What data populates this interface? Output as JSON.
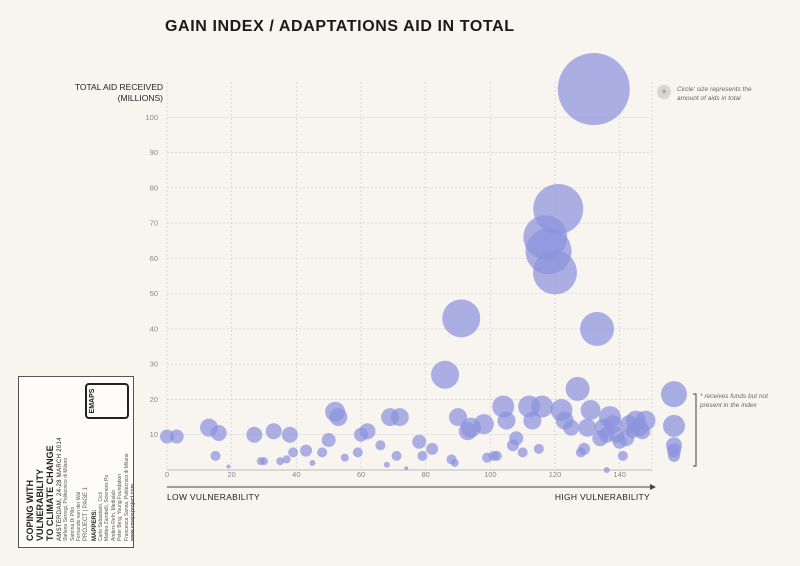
{
  "title": "GAIN INDEX / ADAPTATIONS AID IN TOTAL",
  "legend_note": [
    "Circle' size represents the",
    "amount of aids in total"
  ],
  "side_note": [
    "* receives funds but not",
    "present in the index"
  ],
  "colors": {
    "bubble": "#8c93dc",
    "grid": "#cccccc",
    "axis": "#444444"
  },
  "card": {
    "title_lines": [
      "Coping with",
      "vulnerability",
      "to climate change"
    ],
    "subtitle": "AMSTERDAM, 24-28 MARCH 2014",
    "team": [
      "Stefano Serregi, Politecnico di Milano",
      "Sabrina Di Pillo",
      "Fernando van der Wal"
    ],
    "website": "www.emapsproject.com",
    "mappers_heading": "MAPPERS:",
    "mappers": [
      "Carlo Sebastiani, Cicli",
      "Matteo Zambelli, Sciences Po",
      "Anders Refn, Medialab",
      "Peter Berg, Young Foundation",
      "Francesca Sanna, Politecnico di Milano"
    ],
    "page": "PROJECT | PAGE 1",
    "logo": "EMAPS"
  },
  "chart_data": {
    "type": "scatter",
    "title": "GAIN INDEX / ADAPTATIONS AID IN TOTAL",
    "ylabel": [
      "TOTAL AID RECEIVED",
      "(MILLIONS)"
    ],
    "xlabel_low": "LOW VULNERABILITY",
    "xlabel_high": "HIGH VULNERABILITY",
    "xlim": [
      0,
      150
    ],
    "ylim": [
      0,
      110
    ],
    "xticks": [
      0,
      20,
      40,
      60,
      80,
      100,
      120,
      140
    ],
    "yticks": [
      10,
      20,
      30,
      40,
      50,
      60,
      70,
      80,
      90,
      100
    ],
    "grid": true,
    "size_encoding": "total aid",
    "points": [
      {
        "x": 0,
        "y": 9.5
      },
      {
        "x": 3,
        "y": 9.5
      },
      {
        "x": 13,
        "y": 12
      },
      {
        "x": 15,
        "y": 4
      },
      {
        "x": 16,
        "y": 10.5
      },
      {
        "x": 19,
        "y": 1
      },
      {
        "x": 27,
        "y": 10
      },
      {
        "x": 29,
        "y": 2.5
      },
      {
        "x": 30,
        "y": 2.5
      },
      {
        "x": 33,
        "y": 11
      },
      {
        "x": 35,
        "y": 2.5
      },
      {
        "x": 37,
        "y": 3
      },
      {
        "x": 38,
        "y": 10
      },
      {
        "x": 39,
        "y": 5
      },
      {
        "x": 43,
        "y": 5.5
      },
      {
        "x": 45,
        "y": 2
      },
      {
        "x": 48,
        "y": 5
      },
      {
        "x": 50,
        "y": 8.5
      },
      {
        "x": 52,
        "y": 16.5
      },
      {
        "x": 53,
        "y": 15
      },
      {
        "x": 55,
        "y": 3.5
      },
      {
        "x": 59,
        "y": 5
      },
      {
        "x": 60,
        "y": 10
      },
      {
        "x": 62,
        "y": 11
      },
      {
        "x": 66,
        "y": 7
      },
      {
        "x": 68,
        "y": 1.5
      },
      {
        "x": 69,
        "y": 15
      },
      {
        "x": 71,
        "y": 4
      },
      {
        "x": 72,
        "y": 15
      },
      {
        "x": 74,
        "y": 0.5
      },
      {
        "x": 78,
        "y": 8
      },
      {
        "x": 79,
        "y": 4
      },
      {
        "x": 82,
        "y": 6
      },
      {
        "x": 86,
        "y": 27
      },
      {
        "x": 88,
        "y": 3
      },
      {
        "x": 89,
        "y": 2
      },
      {
        "x": 90,
        "y": 15
      },
      {
        "x": 91,
        "y": 43
      },
      {
        "x": 93,
        "y": 11
      },
      {
        "x": 94,
        "y": 12
      },
      {
        "x": 98,
        "y": 13
      },
      {
        "x": 99,
        "y": 3.5
      },
      {
        "x": 101,
        "y": 4
      },
      {
        "x": 102,
        "y": 4
      },
      {
        "x": 104,
        "y": 18
      },
      {
        "x": 105,
        "y": 14
      },
      {
        "x": 107,
        "y": 7
      },
      {
        "x": 108,
        "y": 9
      },
      {
        "x": 110,
        "y": 5
      },
      {
        "x": 112,
        "y": 18
      },
      {
        "x": 113,
        "y": 14
      },
      {
        "x": 115,
        "y": 6
      },
      {
        "x": 116,
        "y": 18
      },
      {
        "x": 117,
        "y": 66
      },
      {
        "x": 118,
        "y": 62
      },
      {
        "x": 120,
        "y": 56
      },
      {
        "x": 121,
        "y": 74
      },
      {
        "x": 122,
        "y": 17
      },
      {
        "x": 123,
        "y": 14
      },
      {
        "x": 125,
        "y": 12
      },
      {
        "x": 127,
        "y": 23
      },
      {
        "x": 128,
        "y": 5
      },
      {
        "x": 129,
        "y": 6
      },
      {
        "x": 130,
        "y": 12
      },
      {
        "x": 131,
        "y": 17
      },
      {
        "x": 132,
        "y": 108
      },
      {
        "x": 133,
        "y": 40
      },
      {
        "x": 134,
        "y": 9
      },
      {
        "x": 135,
        "y": 12
      },
      {
        "x": 136,
        "y": 10
      },
      {
        "x": 137,
        "y": 15
      },
      {
        "x": 138,
        "y": 13
      },
      {
        "x": 139,
        "y": 10
      },
      {
        "x": 140,
        "y": 8
      },
      {
        "x": 141,
        "y": 4
      },
      {
        "x": 142,
        "y": 9
      },
      {
        "x": 143,
        "y": 13
      },
      {
        "x": 144,
        "y": 11
      },
      {
        "x": 145,
        "y": 14
      },
      {
        "x": 146,
        "y": 12
      },
      {
        "x": 147,
        "y": 11
      },
      {
        "x": 148,
        "y": 14
      },
      {
        "x": 136,
        "y": 0
      }
    ],
    "sizes": [
      7,
      7,
      9,
      5,
      8,
      2,
      8,
      4,
      4,
      8,
      4,
      4,
      8,
      5,
      6,
      3,
      5,
      7,
      10,
      9,
      4,
      5,
      7,
      8,
      5,
      3,
      9,
      5,
      9,
      2,
      7,
      5,
      6,
      14,
      5,
      4,
      9,
      19,
      9,
      10,
      10,
      5,
      5,
      5,
      11,
      9,
      6,
      7,
      5,
      11,
      9,
      5,
      11,
      22,
      23,
      22,
      25,
      11,
      9,
      8,
      12,
      5,
      6,
      9,
      10,
      36,
      17,
      8,
      9,
      8,
      11,
      9,
      8,
      7,
      5,
      8,
      9,
      7,
      10,
      9,
      8,
      10,
      3
    ],
    "outside_index": [
      {
        "y": 21.5,
        "size": 13
      },
      {
        "y": 12.5,
        "size": 11
      },
      {
        "y": 7,
        "size": 8
      },
      {
        "y": 5.5,
        "size": 7
      },
      {
        "y": 4,
        "size": 6
      }
    ]
  }
}
